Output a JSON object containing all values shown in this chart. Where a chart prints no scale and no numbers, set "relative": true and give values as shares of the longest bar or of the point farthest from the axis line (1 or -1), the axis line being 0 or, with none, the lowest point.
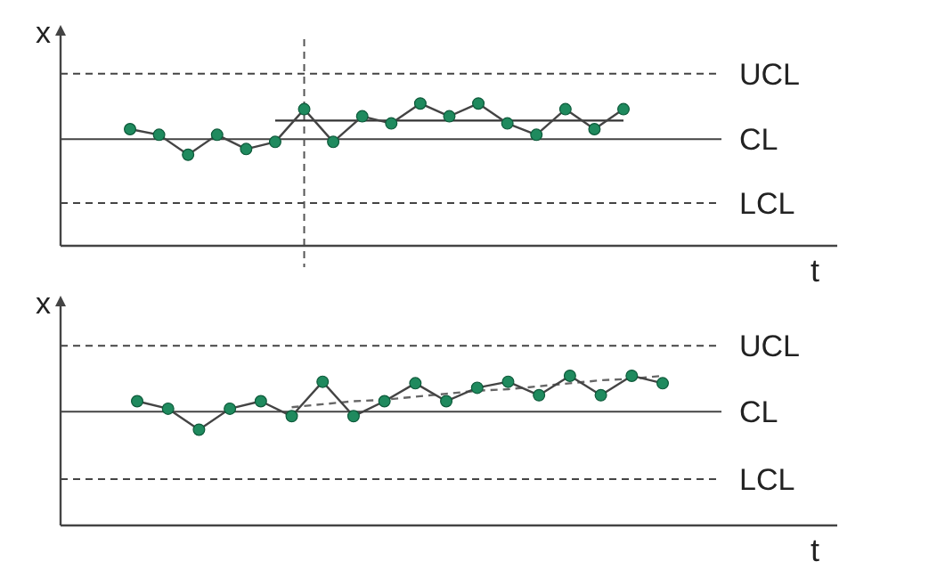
{
  "chart_data": [
    {
      "type": "line",
      "xlabel": "t",
      "ylabel": "x",
      "relative": true,
      "categories": [
        null,
        null,
        null,
        null,
        null,
        null,
        null,
        null,
        null,
        null,
        null,
        null,
        null,
        null,
        null,
        null,
        null,
        null
      ],
      "series": [
        {
          "type": "line",
          "color": "#444444",
          "marker": "circle",
          "values": [
            0.82,
            0.78,
            0.64,
            0.78,
            0.68,
            0.73,
            0.96,
            0.73,
            0.91,
            0.86,
            1,
            0.91,
            1,
            0.86,
            0.78,
            0.96,
            0.82,
            0.96
          ]
        },
        {
          "type": "line",
          "color": "#333333",
          "marker": "none",
          "values": [
            null,
            null,
            null,
            null,
            null,
            0.88,
            0.88,
            0.88,
            0.88,
            0.88,
            0.88,
            0.88,
            0.88,
            0.88,
            0.88,
            0.88,
            0.88,
            0.88
          ]
        }
      ],
      "ref_lines": [
        {
          "axis": "y",
          "value": 1.21,
          "label": "UCL",
          "line_style": "dashed"
        },
        {
          "axis": "y",
          "value": 0.75,
          "label": "CL",
          "line_style": "solid"
        },
        {
          "axis": "y",
          "value": 0.3,
          "label": "LCL",
          "line_style": "dashed"
        }
      ]
    },
    {
      "type": "line",
      "xlabel": "t",
      "ylabel": "x",
      "relative": true,
      "categories": [
        null,
        null,
        null,
        null,
        null,
        null,
        null,
        null,
        null,
        null,
        null,
        null,
        null,
        null,
        null,
        null,
        null,
        null
      ],
      "series": [
        {
          "type": "line",
          "color": "#444444",
          "marker": "circle",
          "values": [
            0.83,
            0.78,
            0.64,
            0.78,
            0.83,
            0.73,
            0.96,
            0.73,
            0.83,
            0.95,
            0.83,
            0.92,
            0.96,
            0.87,
            1,
            0.87,
            1,
            0.95
          ]
        },
        {
          "type": "line",
          "color": "#666666",
          "marker": "none",
          "line_style": "dashed",
          "values": [
            null,
            null,
            null,
            null,
            null,
            0.79,
            0.81,
            0.83,
            0.84,
            0.86,
            0.88,
            0.9,
            0.91,
            0.93,
            0.95,
            0.97,
            0.98,
            1
          ]
        }
      ],
      "ref_lines": [
        {
          "axis": "y",
          "value": 1.2,
          "label": "UCL",
          "line_style": "dashed"
        },
        {
          "axis": "y",
          "value": 0.76,
          "label": "CL",
          "line_style": "solid"
        },
        {
          "axis": "y",
          "value": 0.31,
          "label": "LCL",
          "line_style": "dashed"
        }
      ]
    }
  ]
}
